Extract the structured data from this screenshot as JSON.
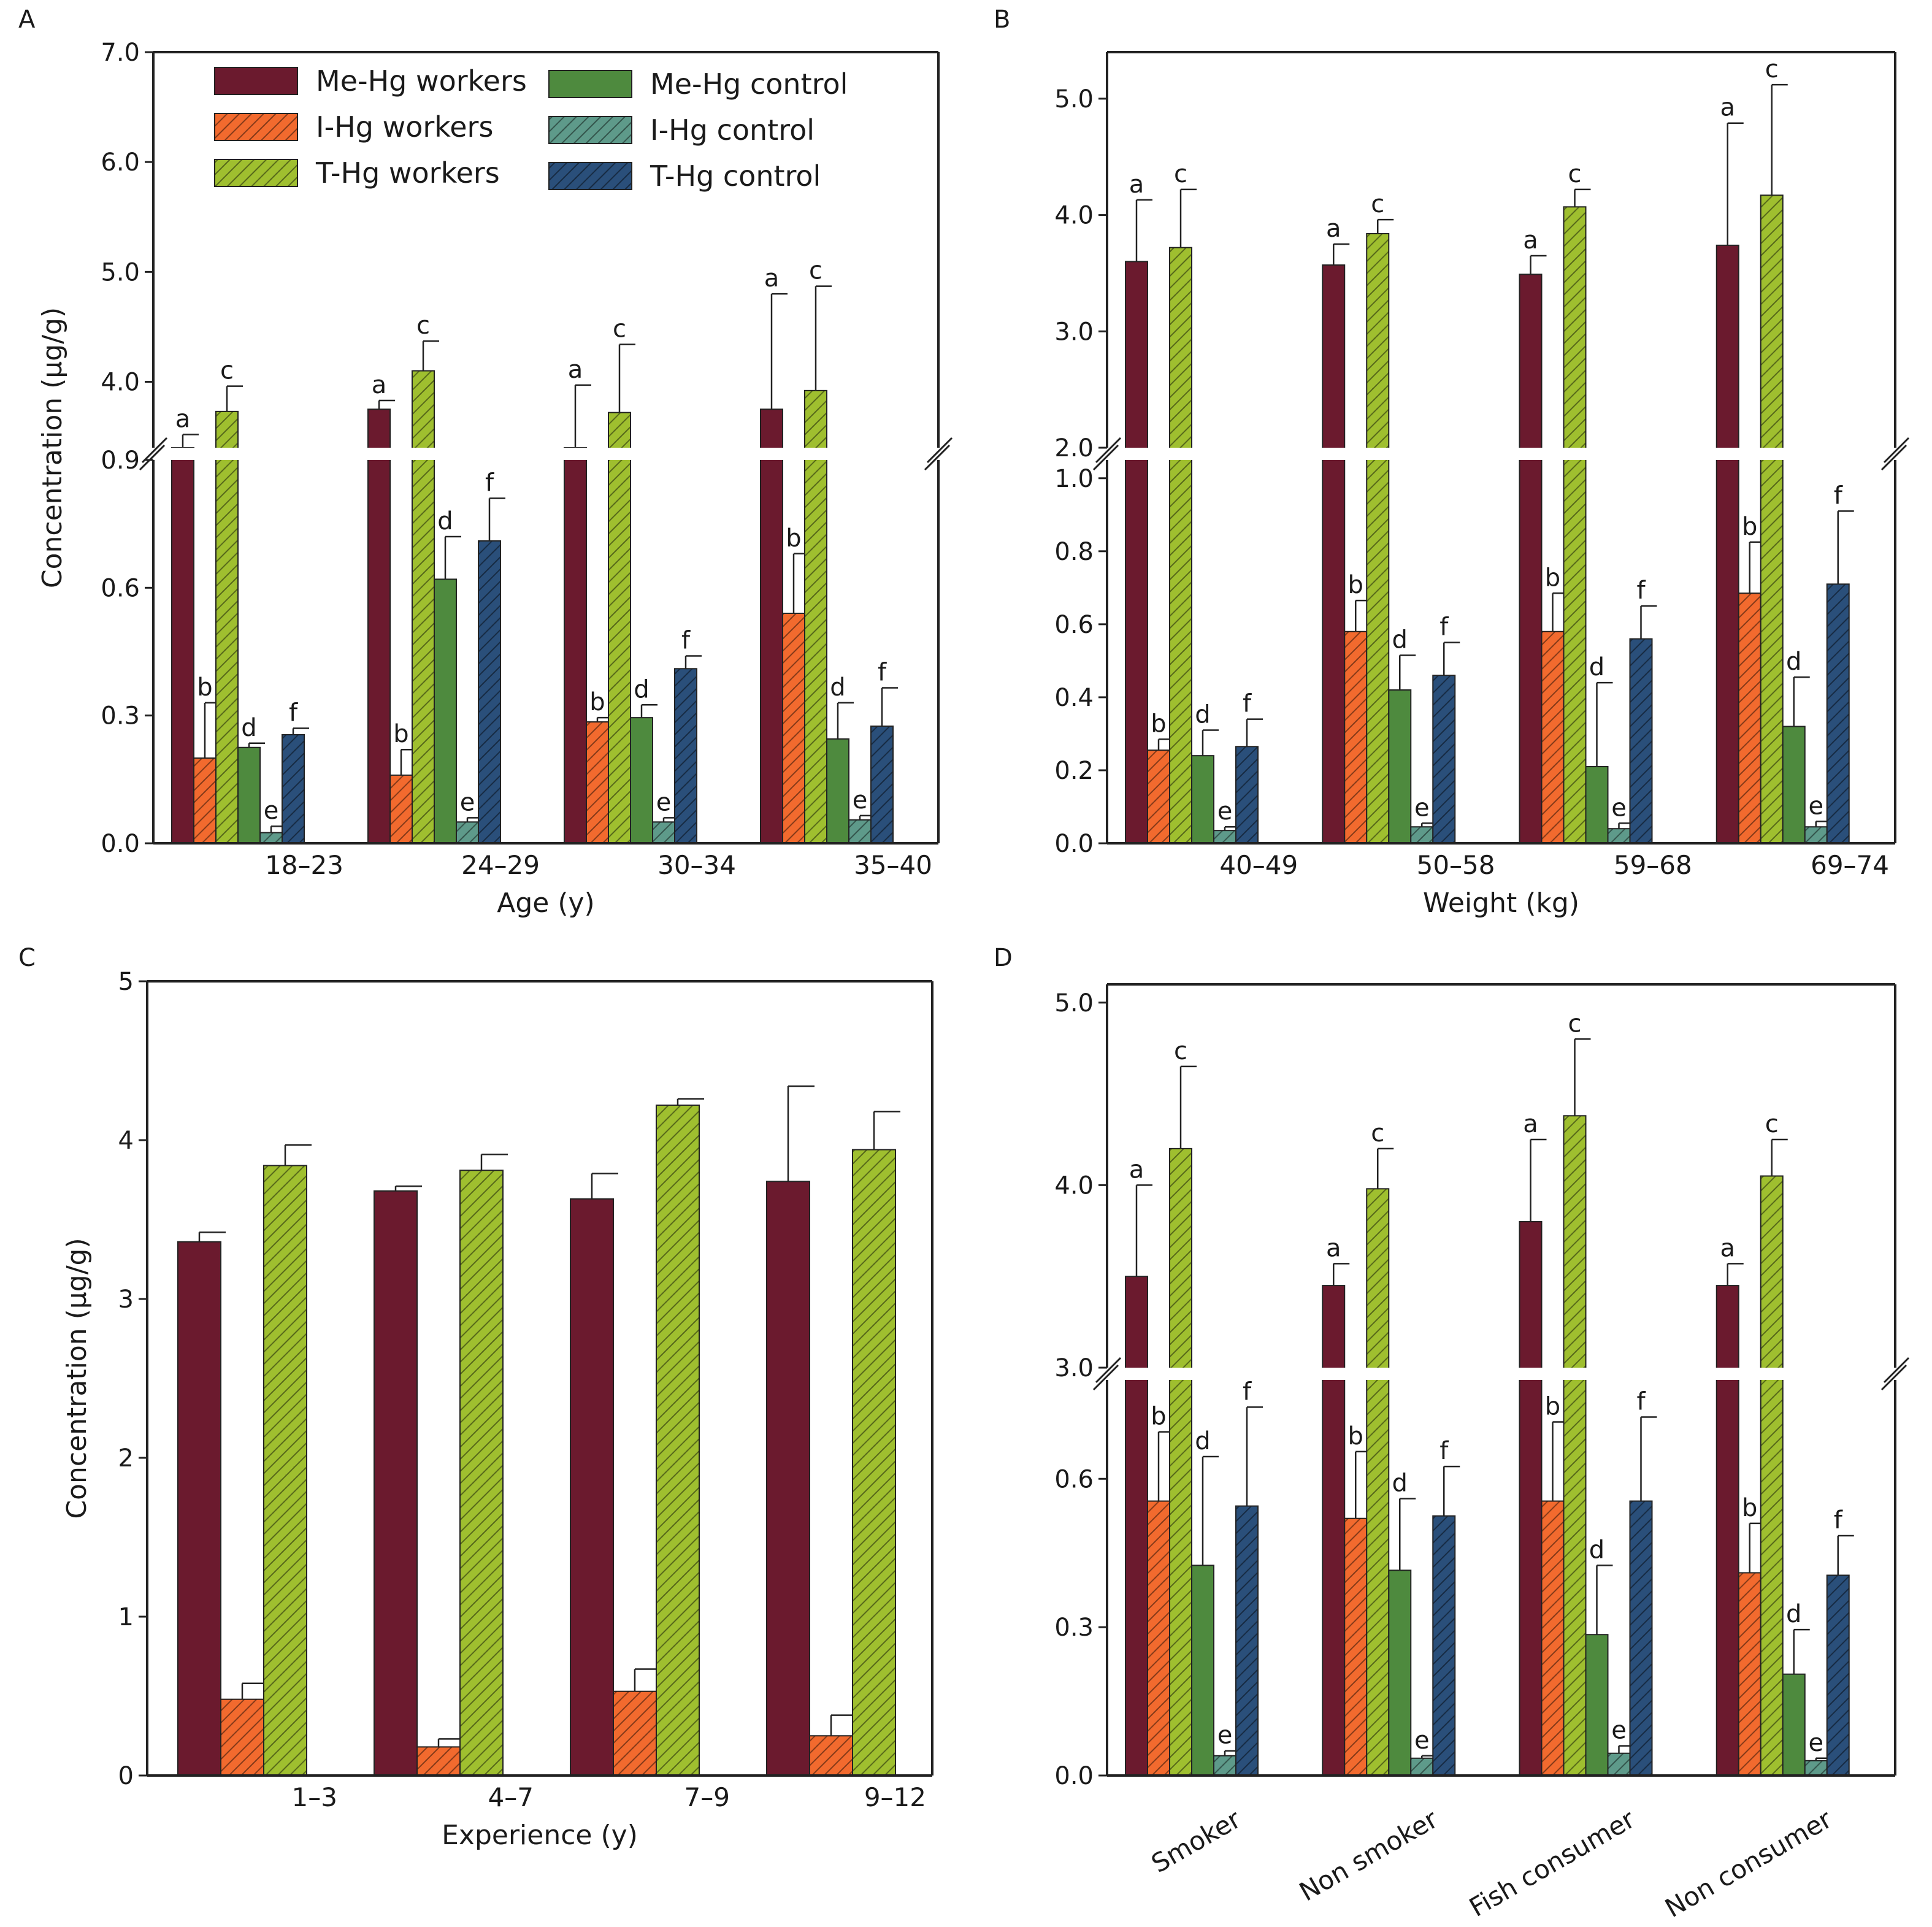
{
  "figure": {
    "legend": {
      "entries": [
        {
          "label": "Me-Hg workers",
          "pattern": "solid",
          "color": "#6b1a2e"
        },
        {
          "label": "I-Hg workers",
          "pattern": "hatch",
          "color": "#f26a2e"
        },
        {
          "label": "T-Hg workers",
          "pattern": "hatch",
          "color": "#9fbf2f"
        },
        {
          "label": "Me-Hg control",
          "pattern": "solid",
          "color": "#4e8a3e"
        },
        {
          "label": "I-Hg control",
          "pattern": "hatch",
          "color": "#5e9a8a"
        },
        {
          "label": "T-Hg control",
          "pattern": "hatch",
          "color": "#2a4f7a"
        }
      ]
    }
  },
  "chart_data": [
    {
      "panel": "A",
      "type": "bar",
      "xlabel": "Age (y)",
      "ylabel": "Concentration (μg/g)",
      "categories": [
        "18–23",
        "24–29",
        "30–34",
        "35–40"
      ],
      "broken_axis": true,
      "lower_range": [
        0,
        0.9
      ],
      "upper_range": [
        3.4,
        7.0
      ],
      "lower_ticks": [
        "0.0",
        "0.3",
        "0.6",
        "0.9"
      ],
      "upper_ticks": [
        "4.0",
        "5.0",
        "6.0",
        "7.0"
      ],
      "series": [
        {
          "name": "Me-Hg workers",
          "values": [
            3.4,
            3.75,
            3.35,
            3.75
          ],
          "errors": [
            0.12,
            0.08,
            0.62,
            1.05
          ],
          "letter": "a"
        },
        {
          "name": "I-Hg workers",
          "values": [
            0.2,
            0.16,
            0.285,
            0.54
          ],
          "errors": [
            0.13,
            0.06,
            0.01,
            0.14
          ],
          "letter": "b"
        },
        {
          "name": "T-Hg workers",
          "values": [
            3.73,
            4.1,
            3.72,
            3.92
          ],
          "errors": [
            0.23,
            0.27,
            0.62,
            0.95
          ],
          "letter": "c"
        },
        {
          "name": "Me-Hg control",
          "values": [
            0.225,
            0.62,
            0.295,
            0.245
          ],
          "errors": [
            0.01,
            0.1,
            0.03,
            0.085
          ],
          "letter": "d"
        },
        {
          "name": "I-Hg control",
          "values": [
            0.025,
            0.05,
            0.05,
            0.055
          ],
          "errors": [
            0.015,
            0.01,
            0.01,
            0.01
          ],
          "letter": "e"
        },
        {
          "name": "T-Hg control",
          "values": [
            0.255,
            0.71,
            0.41,
            0.275
          ],
          "errors": [
            0.015,
            0.1,
            0.03,
            0.09
          ],
          "letter": "f"
        }
      ]
    },
    {
      "panel": "B",
      "type": "bar",
      "xlabel": "Weight (kg)",
      "ylabel": "",
      "categories": [
        "40–49",
        "50–58",
        "59–68",
        "69–74"
      ],
      "broken_axis": true,
      "lower_range": [
        0,
        1.05
      ],
      "upper_range": [
        2.0,
        5.4
      ],
      "lower_ticks": [
        "0.0",
        "0.2",
        "0.4",
        "0.6",
        "0.8",
        "1.0"
      ],
      "upper_ticks": [
        "2.0",
        "3.0",
        "4.0",
        "5.0"
      ],
      "series": [
        {
          "name": "Me-Hg workers",
          "values": [
            3.6,
            3.57,
            3.49,
            3.74
          ],
          "errors": [
            0.53,
            0.18,
            0.16,
            1.05
          ],
          "letter": "a"
        },
        {
          "name": "I-Hg workers",
          "values": [
            0.255,
            0.58,
            0.58,
            0.685
          ],
          "errors": [
            0.03,
            0.085,
            0.105,
            0.14
          ],
          "letter": "b"
        },
        {
          "name": "T-Hg workers",
          "values": [
            3.72,
            3.84,
            4.07,
            4.17
          ],
          "errors": [
            0.5,
            0.12,
            0.15,
            0.95
          ],
          "letter": "c"
        },
        {
          "name": "Me-Hg control",
          "values": [
            0.24,
            0.42,
            0.21,
            0.32
          ],
          "errors": [
            0.07,
            0.095,
            0.23,
            0.135
          ],
          "letter": "d"
        },
        {
          "name": "I-Hg control",
          "values": [
            0.035,
            0.045,
            0.04,
            0.045
          ],
          "errors": [
            0.01,
            0.01,
            0.015,
            0.015
          ],
          "letter": "e"
        },
        {
          "name": "T-Hg control",
          "values": [
            0.265,
            0.46,
            0.56,
            0.71
          ],
          "errors": [
            0.075,
            0.09,
            0.09,
            0.2
          ],
          "letter": "f"
        }
      ]
    },
    {
      "panel": "C",
      "type": "bar",
      "xlabel": "Experience (y)",
      "ylabel": "Concentration (μg/g)",
      "categories": [
        "1–3",
        "4–7",
        "7–9",
        "9–12"
      ],
      "broken_axis": false,
      "ylim": [
        0,
        5
      ],
      "ticks": [
        "0",
        "1",
        "2",
        "3",
        "4",
        "5"
      ],
      "series": [
        {
          "name": "Me-Hg workers",
          "values": [
            3.36,
            3.68,
            3.63,
            3.74
          ],
          "errors": [
            0.06,
            0.03,
            0.16,
            0.6
          ]
        },
        {
          "name": "I-Hg workers",
          "values": [
            0.48,
            0.18,
            0.53,
            0.25
          ],
          "errors": [
            0.1,
            0.05,
            0.14,
            0.13
          ]
        },
        {
          "name": "T-Hg workers",
          "values": [
            3.84,
            3.81,
            4.22,
            3.94
          ],
          "errors": [
            0.13,
            0.1,
            0.04,
            0.24
          ]
        }
      ]
    },
    {
      "panel": "D",
      "type": "bar",
      "xlabel": "",
      "ylabel": "",
      "categories": [
        "Smoker",
        "Non smoker",
        "Fish consumer",
        "Non consumer"
      ],
      "broken_axis": true,
      "lower_range": [
        0,
        0.8
      ],
      "upper_range": [
        3.0,
        5.1
      ],
      "lower_ticks": [
        "0.0",
        "0.3",
        "0.6"
      ],
      "upper_ticks": [
        "3.0",
        "4.0",
        "5.0"
      ],
      "series": [
        {
          "name": "Me-Hg workers",
          "values": [
            3.5,
            3.45,
            3.8,
            3.45
          ],
          "errors": [
            0.5,
            0.12,
            0.45,
            0.12
          ],
          "letter": "a"
        },
        {
          "name": "I-Hg workers",
          "values": [
            0.555,
            0.52,
            0.555,
            0.41
          ],
          "errors": [
            0.14,
            0.135,
            0.16,
            0.1
          ],
          "letter": "b"
        },
        {
          "name": "T-Hg workers",
          "values": [
            4.2,
            3.98,
            4.38,
            4.05
          ],
          "errors": [
            0.45,
            0.22,
            0.42,
            0.2
          ],
          "letter": "c"
        },
        {
          "name": "Me-Hg control",
          "values": [
            0.425,
            0.415,
            0.285,
            0.205
          ],
          "errors": [
            0.22,
            0.145,
            0.14,
            0.09
          ],
          "letter": "d"
        },
        {
          "name": "I-Hg control",
          "values": [
            0.04,
            0.035,
            0.045,
            0.03
          ],
          "errors": [
            0.01,
            0.005,
            0.015,
            0.005
          ],
          "letter": "e"
        },
        {
          "name": "T-Hg control",
          "values": [
            0.545,
            0.525,
            0.555,
            0.405
          ],
          "errors": [
            0.2,
            0.1,
            0.17,
            0.08
          ],
          "letter": "f"
        }
      ]
    }
  ]
}
